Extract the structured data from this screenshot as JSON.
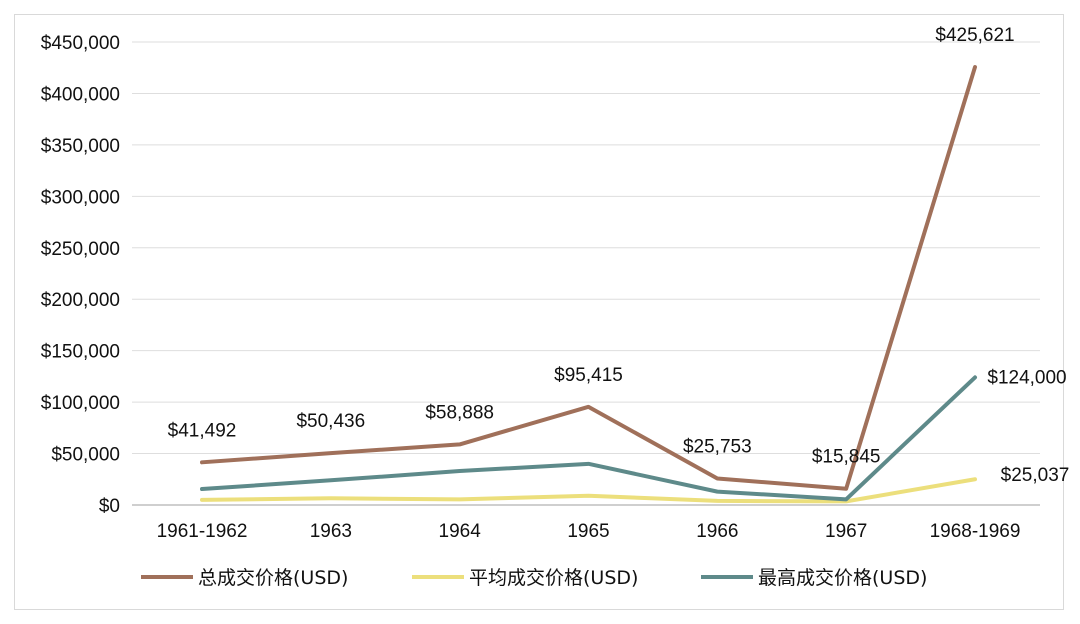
{
  "chart_data": {
    "type": "line",
    "categories": [
      "1961-1962",
      "1963",
      "1964",
      "1965",
      "1966",
      "1967",
      "1968-1969"
    ],
    "ylim": [
      0,
      450000
    ],
    "yticks": [
      0,
      50000,
      100000,
      150000,
      200000,
      250000,
      300000,
      350000,
      400000,
      450000
    ],
    "ytick_labels": [
      "$0",
      "$50,000",
      "$100,000",
      "$150,000",
      "$200,000",
      "$250,000",
      "$300,000",
      "$350,000",
      "$400,000",
      "$450,000"
    ],
    "grid": true,
    "legend_position": "bottom",
    "series": [
      {
        "name": "总成交价格(USD)",
        "color": "#a0705a",
        "values": [
          41492,
          50436,
          58888,
          95415,
          25753,
          15845,
          425621
        ],
        "data_labels": [
          "$41,492",
          "$50,436",
          "$58,888",
          "$95,415",
          "$25,753",
          "$15,845",
          "$425,621"
        ]
      },
      {
        "name": "平均成交价格(USD)",
        "color": "#ecdf7c",
        "values": [
          5000,
          6500,
          5500,
          9000,
          4000,
          3500,
          25037
        ],
        "data_labels": [
          "",
          "",
          "",
          "",
          "",
          "",
          "$25,037"
        ]
      },
      {
        "name": "最高成交价格(USD)",
        "color": "#5e8a8a",
        "values": [
          15500,
          24000,
          33000,
          40000,
          13000,
          5500,
          124000
        ],
        "data_labels": [
          "",
          "",
          "",
          "",
          "",
          "",
          "$124,000"
        ]
      }
    ]
  }
}
